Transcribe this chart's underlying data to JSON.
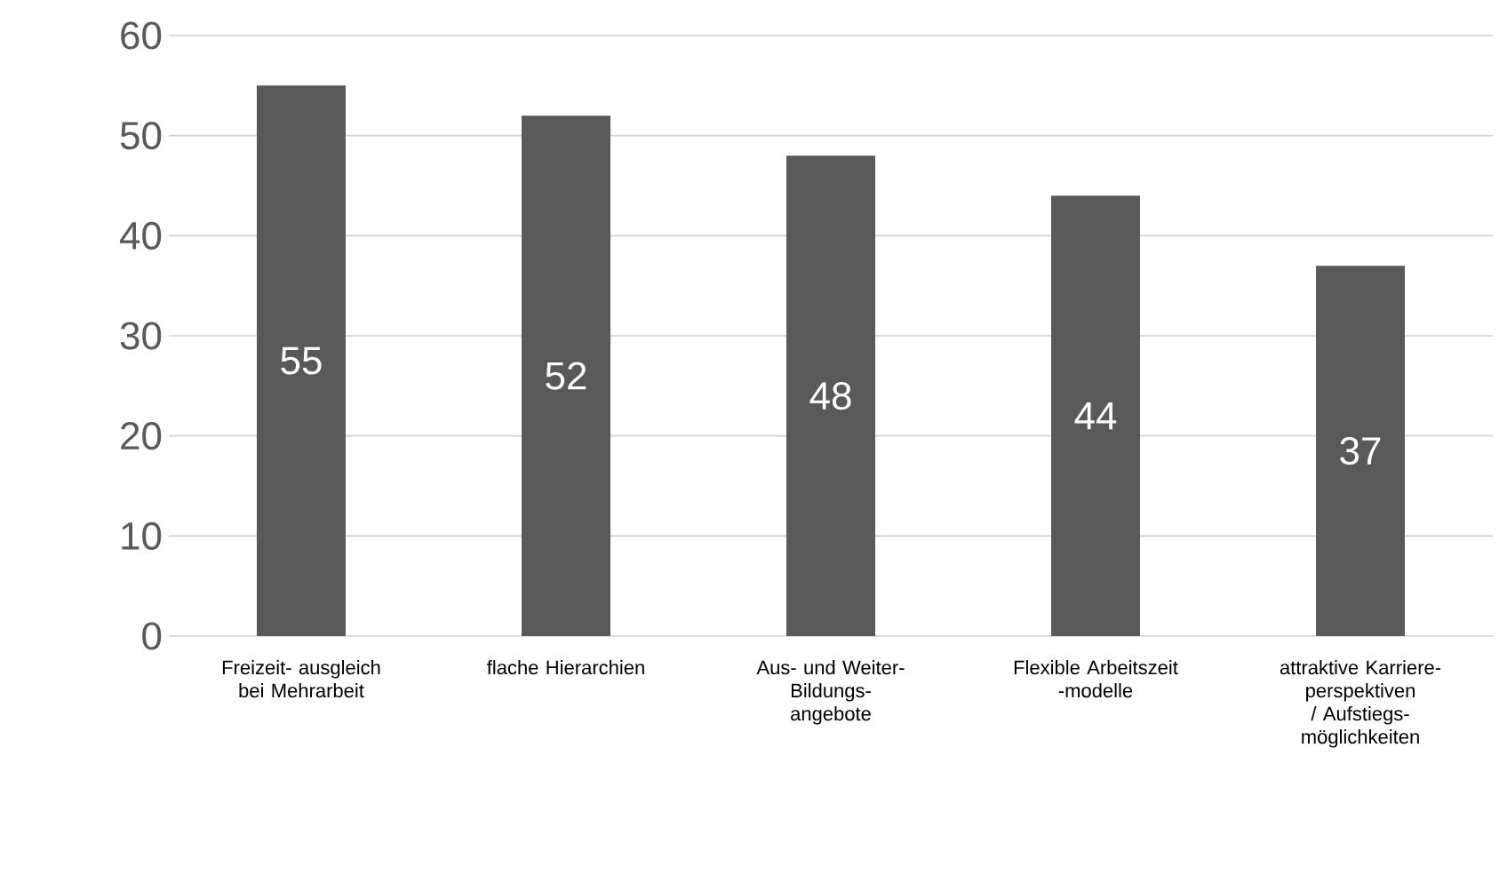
{
  "chart_data": {
    "type": "bar",
    "categories": [
      "Freizeit- ausgleich bei Mehrarbeit",
      "flache Hierarchien",
      "Aus- und Weiter- Bildungs- angebote",
      "Flexible Arbeitszeit -modelle",
      "attraktive Karriere- perspektiven / Aufstiegs- möglichkeiten"
    ],
    "values": [
      55,
      52,
      48,
      44,
      37
    ],
    "color": "#595959",
    "ylim": [
      0,
      60
    ],
    "yticks": [
      0,
      10,
      20,
      30,
      40,
      50,
      60
    ],
    "grid": "y",
    "data_labels": true
  }
}
